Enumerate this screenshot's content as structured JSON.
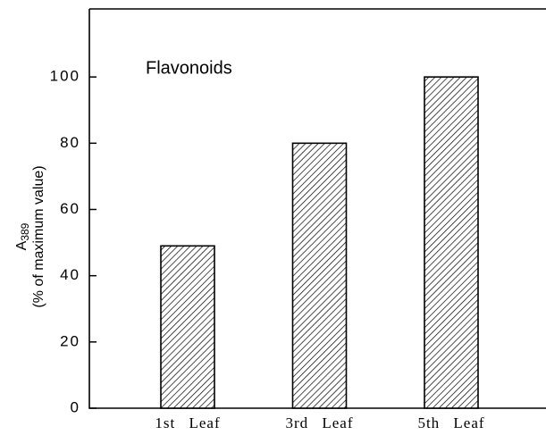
{
  "chart_data": {
    "type": "bar",
    "annotation": "Flavonoids",
    "ylabel_symbol": "A",
    "ylabel_subscript": "389",
    "ylabel": "(% of maximum value)",
    "categories": [
      "1st Leaf",
      "3rd Leaf",
      "5th Leaf"
    ],
    "values": [
      49,
      80,
      100
    ],
    "color": "#000000",
    "hatch": true,
    "ylim": [
      0,
      120
    ],
    "yticks": [
      0,
      20,
      40,
      60,
      80,
      100
    ]
  }
}
